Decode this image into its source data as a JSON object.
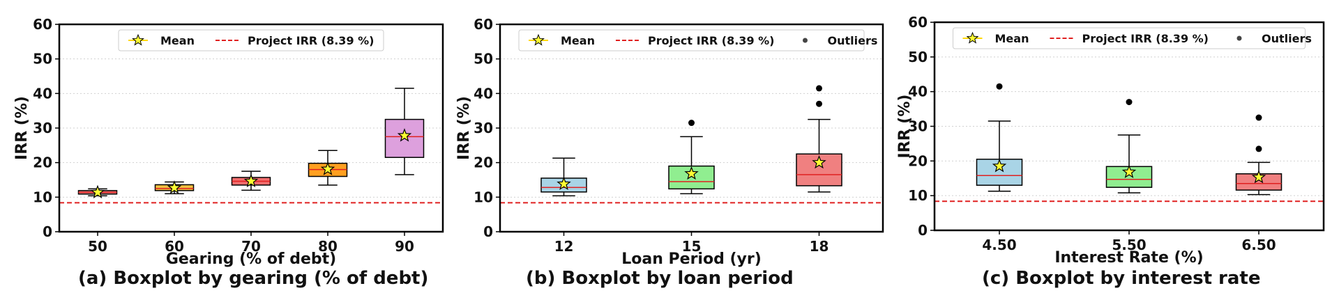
{
  "chart_data": [
    {
      "type": "box",
      "caption": "(a) Boxplot by gearing (% of debt)",
      "xlabel": "Gearing (% of debt)",
      "ylabel": "IRR (%)",
      "ylim": [
        0,
        60
      ],
      "yticks": [
        0,
        10,
        20,
        30,
        40,
        50,
        60
      ],
      "grid": true,
      "legend": {
        "position": "top",
        "entries": [
          "Mean",
          "Project IRR (8.39 %)"
        ]
      },
      "reference_line": {
        "label": "Project IRR (8.39 %)",
        "value": 8.39,
        "color": "#e02020"
      },
      "categories": [
        "50",
        "60",
        "70",
        "80",
        "90"
      ],
      "boxes": [
        {
          "whisker_low": 10.4,
          "q1": 10.9,
          "median": 11.4,
          "q3": 11.9,
          "whisker_high": 12.4,
          "mean": 11.4,
          "outliers": [],
          "color": "#f08080"
        },
        {
          "whisker_low": 11.0,
          "q1": 11.9,
          "median": 12.5,
          "q3": 13.6,
          "whisker_high": 14.4,
          "mean": 12.7,
          "outliers": [],
          "color": "#f0c040"
        },
        {
          "whisker_low": 12.0,
          "q1": 13.5,
          "median": 14.6,
          "q3": 15.7,
          "whisker_high": 17.5,
          "mean": 14.6,
          "outliers": [],
          "color": "#f26d6d"
        },
        {
          "whisker_low": 13.5,
          "q1": 16.0,
          "median": 18.0,
          "q3": 19.8,
          "whisker_high": 23.5,
          "mean": 18.1,
          "outliers": [],
          "color": "#ffa020"
        },
        {
          "whisker_low": 16.5,
          "q1": 21.5,
          "median": 27.5,
          "q3": 32.5,
          "whisker_high": 41.5,
          "mean": 27.8,
          "outliers": [],
          "color": "#dda0dd"
        }
      ]
    },
    {
      "type": "box",
      "caption": "(b) Boxplot by loan period",
      "xlabel": "Loan Period (yr)",
      "ylabel": "IRR (%)",
      "ylim": [
        0,
        60
      ],
      "yticks": [
        0,
        10,
        20,
        30,
        40,
        50,
        60
      ],
      "grid": true,
      "legend": {
        "position": "top",
        "entries": [
          "Mean",
          "Project IRR (8.39 %)",
          "Outliers"
        ]
      },
      "reference_line": {
        "label": "Project IRR (8.39 %)",
        "value": 8.39,
        "color": "#e02020"
      },
      "categories": [
        "12",
        "15",
        "18"
      ],
      "boxes": [
        {
          "whisker_low": 10.4,
          "q1": 11.5,
          "median": 12.8,
          "q3": 15.5,
          "whisker_high": 21.3,
          "mean": 13.8,
          "outliers": [],
          "color": "#a9d4e6"
        },
        {
          "whisker_low": 11.0,
          "q1": 12.4,
          "median": 14.5,
          "q3": 19.0,
          "whisker_high": 27.5,
          "mean": 16.8,
          "outliers": [
            31.5
          ],
          "color": "#90ee90"
        },
        {
          "whisker_low": 11.5,
          "q1": 13.3,
          "median": 16.5,
          "q3": 22.5,
          "whisker_high": 32.5,
          "mean": 20.0,
          "outliers": [
            37.0,
            41.5
          ],
          "color": "#f08080"
        }
      ]
    },
    {
      "type": "box",
      "caption": "(c) Boxplot by interest rate",
      "xlabel": "Interest Rate (%)",
      "ylabel": "IRR (%)",
      "ylim": [
        0,
        60
      ],
      "yticks": [
        0,
        10,
        20,
        30,
        40,
        50,
        60
      ],
      "grid": true,
      "legend": {
        "position": "top",
        "entries": [
          "Mean",
          "Project IRR (8.39 %)",
          "Outliers"
        ]
      },
      "reference_line": {
        "label": "Project IRR (8.39 %)",
        "value": 8.39,
        "color": "#e02020"
      },
      "categories": [
        "4.50",
        "5.50",
        "6.50"
      ],
      "boxes": [
        {
          "whisker_low": 11.3,
          "q1": 13.0,
          "median": 15.8,
          "q3": 20.5,
          "whisker_high": 31.5,
          "mean": 18.5,
          "outliers": [
            41.5
          ],
          "color": "#a9d4e6"
        },
        {
          "whisker_low": 10.8,
          "q1": 12.4,
          "median": 14.7,
          "q3": 18.4,
          "whisker_high": 27.5,
          "mean": 16.8,
          "outliers": [
            37.0
          ],
          "color": "#90ee90"
        },
        {
          "whisker_low": 10.3,
          "q1": 11.6,
          "median": 13.5,
          "q3": 16.3,
          "whisker_high": 19.6,
          "mean": 15.3,
          "outliers": [
            23.5,
            32.5
          ],
          "color": "#f08080"
        }
      ]
    }
  ]
}
